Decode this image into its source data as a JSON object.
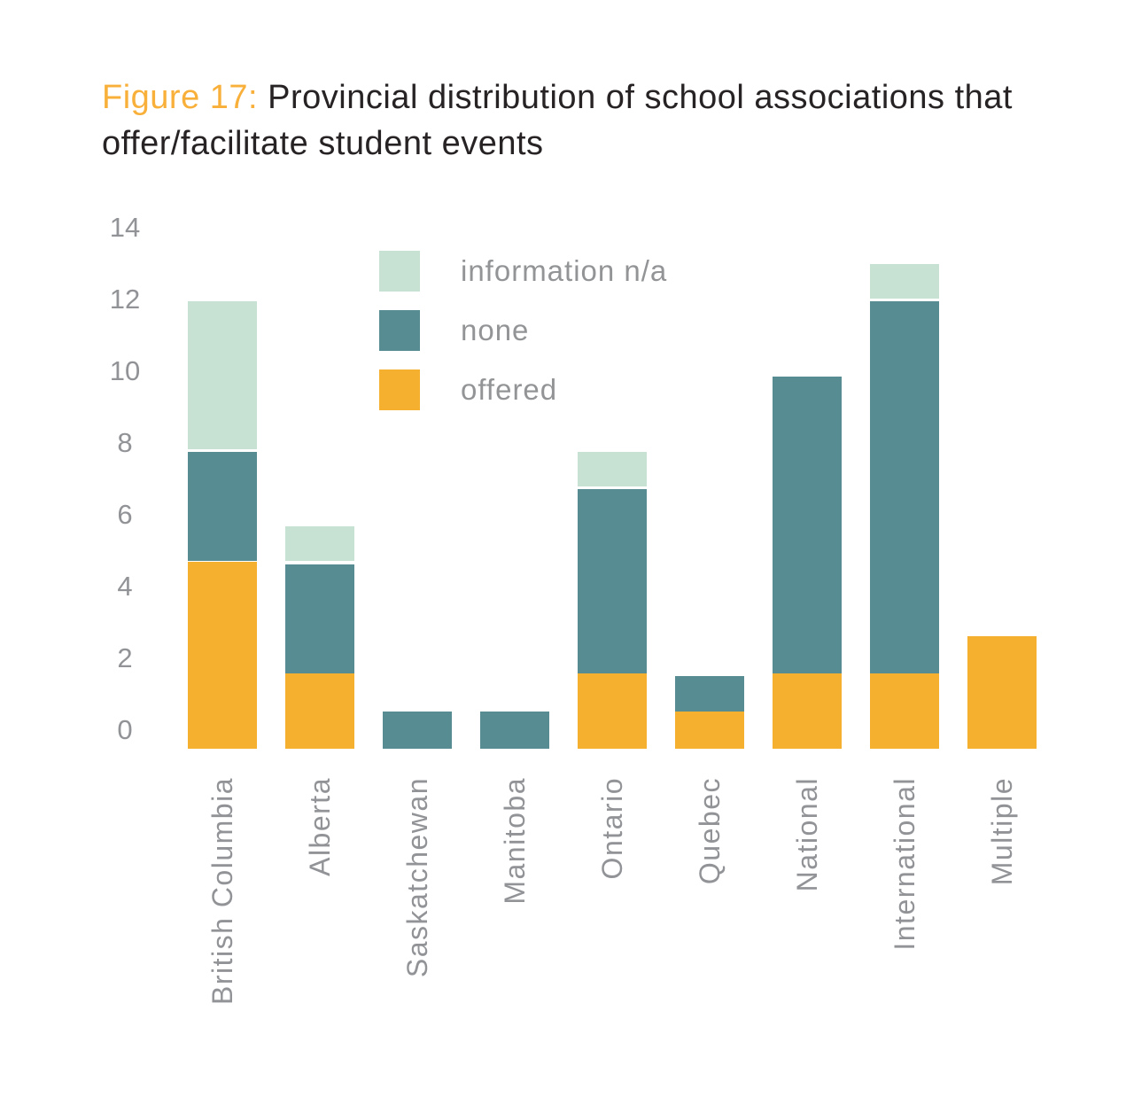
{
  "title": {
    "figure_label": "Figure 17:",
    "text": " Provincial distribution of school associations that offer/facilitate student events"
  },
  "colors": {
    "background": "#ffffff",
    "title_text": "#272325",
    "figure_label_orange": "#f8b03a",
    "axis_text_gray": "#919396",
    "legend_text_gray": "#929496",
    "segment_separator": "#ffffff",
    "offered": "#f6b02f",
    "none": "#578c93",
    "information_na": "#c7e2d2"
  },
  "chart_data": {
    "type": "bar",
    "stacked": true,
    "title": "Figure 17: Provincial distribution of school associations that offer/facilitate student events",
    "xlabel": "",
    "ylabel": "",
    "grid": false,
    "ylim": [
      0,
      14
    ],
    "ytick_step": 2,
    "ytick_labels": [
      "0",
      "2",
      "4",
      "6",
      "8",
      "10",
      "12",
      "14"
    ],
    "categories": [
      "British Columbia",
      "Alberta",
      "Saskatchewan",
      "Manitoba",
      "Ontario",
      "Quebec",
      "National",
      "International",
      "Multiple"
    ],
    "series": [
      {
        "name": "offered",
        "color": "#f6b02f",
        "values": [
          5,
          2,
          0,
          0,
          2,
          1,
          2,
          2,
          3
        ]
      },
      {
        "name": "none",
        "color": "#578c93",
        "values": [
          3,
          3,
          1,
          1,
          5,
          1,
          8,
          10,
          0
        ]
      },
      {
        "name": "information n/a",
        "color": "#c7e2d2",
        "values": [
          4,
          1,
          0,
          0,
          1,
          0,
          0,
          1,
          0
        ]
      }
    ],
    "totals": [
      12,
      6,
      1,
      1,
      8,
      2,
      10,
      13,
      3
    ],
    "legend_order": [
      "information n/a",
      "none",
      "offered"
    ],
    "legend_position": "upper-left-inside"
  }
}
